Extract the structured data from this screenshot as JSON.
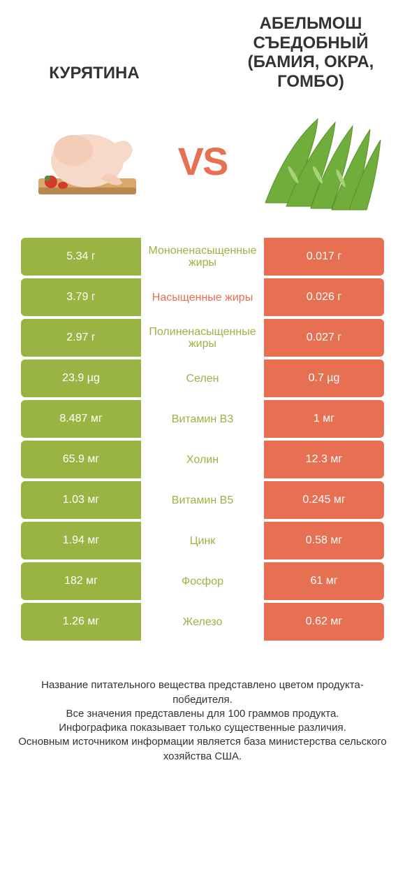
{
  "colors": {
    "green": "#9ab444",
    "orange": "#e77052",
    "text": "#333333",
    "background": "#ffffff"
  },
  "header": {
    "left_title": "КУРЯТИНА",
    "right_title": "АБЕЛЬМОШ СЪЕДОБНЫЙ (БАМИЯ, ОКРА, ГОМБО)",
    "vs_label": "VS"
  },
  "rows": [
    {
      "left": "5.34 г",
      "label": "Мононенасыщенные жиры",
      "winner": "left",
      "right": "0.017 г"
    },
    {
      "left": "3.79 г",
      "label": "Насыщенные жиры",
      "winner": "right",
      "right": "0.026 г"
    },
    {
      "left": "2.97 г",
      "label": "Полиненасыщенные жиры",
      "winner": "left",
      "right": "0.027 г"
    },
    {
      "left": "23.9 µg",
      "label": "Селен",
      "winner": "left",
      "right": "0.7 µg"
    },
    {
      "left": "8.487 мг",
      "label": "Витамин B3",
      "winner": "left",
      "right": "1 мг"
    },
    {
      "left": "65.9 мг",
      "label": "Холин",
      "winner": "left",
      "right": "12.3 мг"
    },
    {
      "left": "1.03 мг",
      "label": "Витамин B5",
      "winner": "left",
      "right": "0.245 мг"
    },
    {
      "left": "1.94 мг",
      "label": "Цинк",
      "winner": "left",
      "right": "0.58 мг"
    },
    {
      "left": "182 мг",
      "label": "Фосфор",
      "winner": "left",
      "right": "61 мг"
    },
    {
      "left": "1.26 мг",
      "label": "Железо",
      "winner": "left",
      "right": "0.62 мг"
    }
  ],
  "footer": {
    "line1": "Название питательного вещества представлено цветом продукта-победителя.",
    "line2": "Все значения представлены для 100 граммов продукта.",
    "line3": "Инфографика показывает только существенные различия.",
    "line4": "Основным источником информации является база министерства сельского хозяйства США."
  }
}
